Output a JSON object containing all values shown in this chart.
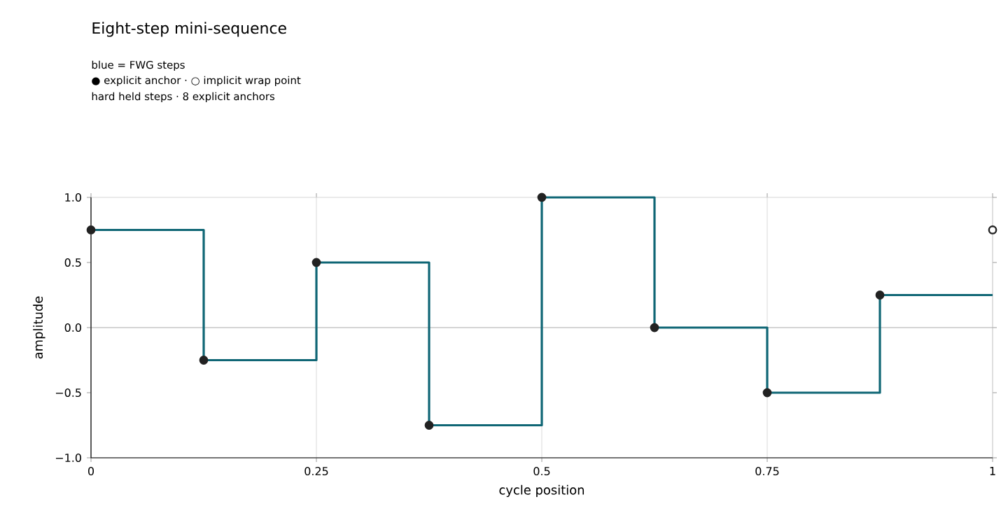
{
  "chart_data": {
    "type": "step",
    "title": "Eight-step mini-sequence",
    "subtitle": "blue = FWG steps",
    "annotations": [
      "● explicit anchor · ○ implicit wrap point",
      "hard held steps · 8 explicit anchors"
    ],
    "xlabel": "cycle position",
    "ylabel": "amplitude",
    "series": [
      {
        "name": null,
        "marker": "none",
        "color": "#0f6675",
        "x": [
          0,
          0.125,
          0.25,
          0.375,
          0.5,
          0.625,
          0.75,
          0.875,
          1
        ],
        "values": [
          0.75,
          -0.25,
          0.5,
          -0.75,
          1.0,
          0,
          -0.5,
          0.25,
          0.25
        ]
      },
      {
        "name": null,
        "type": "scatter",
        "marker": "circle",
        "color": "#222222",
        "x": [
          0,
          0.125,
          0.25,
          0.375,
          0.5,
          0.625,
          0.75,
          0.875
        ],
        "values": [
          0.75,
          -0.25,
          0.5,
          -0.75,
          1.0,
          0,
          -0.5,
          0.25
        ]
      },
      {
        "name": null,
        "type": "scatter",
        "marker": "circle",
        "color": "#ffffff",
        "x": [
          1
        ],
        "values": [
          0.75
        ]
      }
    ],
    "xlim": [
      0,
      1
    ],
    "ylim": [
      -1.0,
      1.0
    ],
    "xticks": [
      0,
      0.25,
      0.5,
      0.75,
      1
    ],
    "yticks": [
      {
        "value": -1,
        "label": "−1.0"
      },
      {
        "value": -0.5,
        "label": "−0.5"
      },
      {
        "value": 0,
        "label": "0.0"
      },
      {
        "value": 0.5,
        "label": "0.5"
      },
      {
        "value": 1,
        "label": "1.0"
      }
    ],
    "ref_lines": [
      {
        "axis": "y",
        "value": 0,
        "label": null,
        "color": "#aaaaaa"
      }
    ],
    "grid": "x"
  }
}
